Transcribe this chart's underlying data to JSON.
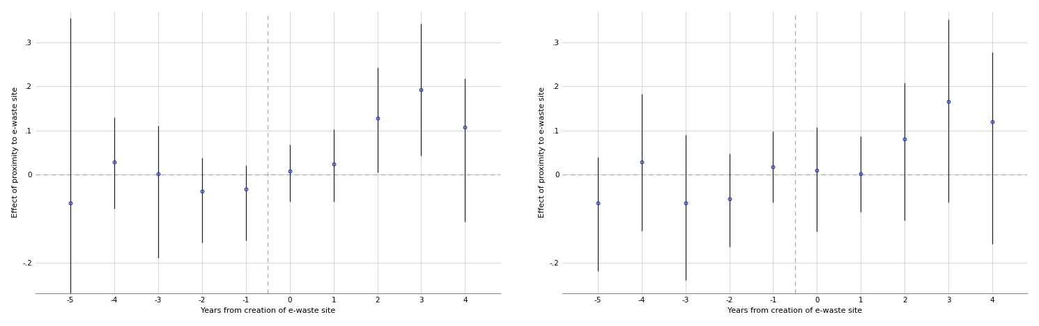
{
  "panel_A": {
    "x": [
      -5,
      -4,
      -3,
      -2,
      -1,
      0,
      1,
      2,
      3,
      4
    ],
    "coef": [
      -0.065,
      0.028,
      0.001,
      -0.038,
      -0.033,
      0.008,
      0.024,
      0.128,
      0.192,
      0.108
    ],
    "ci_low": [
      -0.3,
      -0.078,
      -0.19,
      -0.155,
      -0.15,
      -0.062,
      -0.062,
      0.005,
      0.042,
      -0.108
    ],
    "ci_high": [
      0.355,
      0.13,
      0.11,
      0.038,
      0.02,
      0.068,
      0.103,
      0.243,
      0.342,
      0.218
    ]
  },
  "panel_B": {
    "x": [
      -5,
      -4,
      -3,
      -2,
      -1,
      0,
      1,
      2,
      3,
      4
    ],
    "coef": [
      -0.065,
      0.028,
      -0.065,
      -0.055,
      0.018,
      0.01,
      0.001,
      0.08,
      0.165,
      0.12
    ],
    "ci_low": [
      -0.22,
      -0.128,
      -0.24,
      -0.165,
      -0.063,
      -0.13,
      -0.085,
      -0.105,
      -0.063,
      -0.158
    ],
    "ci_high": [
      0.04,
      0.183,
      0.09,
      0.048,
      0.098,
      0.108,
      0.086,
      0.208,
      0.352,
      0.278
    ]
  },
  "ylabel": "Effect of proximity to e-waste site",
  "xlabel": "Years from creation of e-waste site",
  "xlim_A": [
    -5.8,
    4.8
  ],
  "xlim_B": [
    -5.8,
    4.8
  ],
  "ylim": [
    -0.27,
    0.37
  ],
  "yticks": [
    -0.2,
    0.0,
    0.1,
    0.2,
    0.3
  ],
  "ytick_labels": [
    "-.2",
    "0",
    ".1",
    ".2",
    ".3"
  ],
  "xticks": [
    -5,
    -4,
    -3,
    -2,
    -1,
    0,
    1,
    2,
    3,
    4
  ],
  "vline_x": -0.5,
  "hline_y": 0.0,
  "dot_color": "#3344bb",
  "ci_color": "#222222",
  "grid_color": "#d0d0d0",
  "dashed_color": "#aaaaaa",
  "bg_color": "#ffffff",
  "label_fontsize": 8.0,
  "tick_fontsize": 7.5,
  "bottom_spine_color": "#888888"
}
